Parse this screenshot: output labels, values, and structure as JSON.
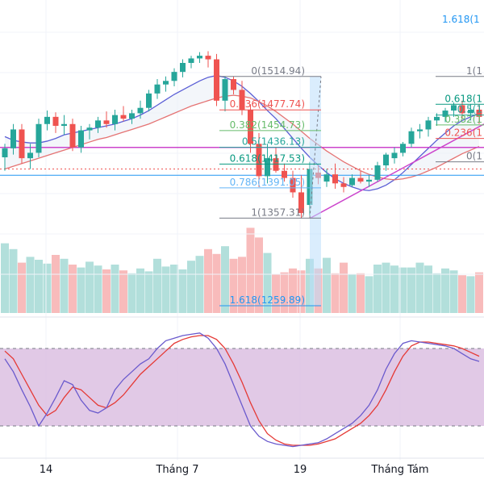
{
  "chart_data": {
    "type": "candlestick",
    "colors": {
      "up": "#26a69a",
      "down": "#ef5350",
      "volume_up": "#b2dfdb",
      "volume_down": "#f8bbbb",
      "ma_fast": "#5b5fd6",
      "ma_slow": "#e57373",
      "support": "#cc44cc",
      "hline": "#2196f3",
      "stoch_k": "#6a5acd",
      "stoch_d": "#e53935",
      "stoch_band": "#d9bce0"
    },
    "x_ticks": [
      "14",
      "Tháng 7",
      "19",
      "Tháng Tám"
    ],
    "candles": [
      {
        "o": 1425,
        "h": 1440,
        "l": 1410,
        "c": 1435
      },
      {
        "o": 1435,
        "h": 1462,
        "l": 1428,
        "c": 1456
      },
      {
        "o": 1456,
        "h": 1462,
        "l": 1418,
        "c": 1424
      },
      {
        "o": 1424,
        "h": 1440,
        "l": 1412,
        "c": 1430
      },
      {
        "o": 1430,
        "h": 1468,
        "l": 1425,
        "c": 1462
      },
      {
        "o": 1462,
        "h": 1477,
        "l": 1455,
        "c": 1470
      },
      {
        "o": 1470,
        "h": 1475,
        "l": 1452,
        "c": 1460
      },
      {
        "o": 1460,
        "h": 1472,
        "l": 1450,
        "c": 1462
      },
      {
        "o": 1462,
        "h": 1468,
        "l": 1432,
        "c": 1436
      },
      {
        "o": 1436,
        "h": 1460,
        "l": 1430,
        "c": 1455
      },
      {
        "o": 1455,
        "h": 1462,
        "l": 1445,
        "c": 1458
      },
      {
        "o": 1458,
        "h": 1470,
        "l": 1452,
        "c": 1466
      },
      {
        "o": 1466,
        "h": 1476,
        "l": 1458,
        "c": 1462
      },
      {
        "o": 1462,
        "h": 1478,
        "l": 1455,
        "c": 1472
      },
      {
        "o": 1472,
        "h": 1482,
        "l": 1465,
        "c": 1468
      },
      {
        "o": 1468,
        "h": 1478,
        "l": 1462,
        "c": 1474
      },
      {
        "o": 1474,
        "h": 1488,
        "l": 1468,
        "c": 1480
      },
      {
        "o": 1480,
        "h": 1500,
        "l": 1476,
        "c": 1496
      },
      {
        "o": 1496,
        "h": 1512,
        "l": 1490,
        "c": 1506
      },
      {
        "o": 1506,
        "h": 1515,
        "l": 1498,
        "c": 1510
      },
      {
        "o": 1510,
        "h": 1524,
        "l": 1504,
        "c": 1520
      },
      {
        "o": 1520,
        "h": 1534,
        "l": 1514,
        "c": 1530
      },
      {
        "o": 1530,
        "h": 1538,
        "l": 1524,
        "c": 1535
      },
      {
        "o": 1535,
        "h": 1542,
        "l": 1530,
        "c": 1538
      },
      {
        "o": 1538,
        "h": 1543,
        "l": 1525,
        "c": 1534
      },
      {
        "o": 1534,
        "h": 1540,
        "l": 1482,
        "c": 1488
      },
      {
        "o": 1488,
        "h": 1515,
        "l": 1476,
        "c": 1512
      },
      {
        "o": 1512,
        "h": 1515,
        "l": 1495,
        "c": 1500
      },
      {
        "o": 1500,
        "h": 1510,
        "l": 1472,
        "c": 1478
      },
      {
        "o": 1478,
        "h": 1484,
        "l": 1430,
        "c": 1440
      },
      {
        "o": 1440,
        "h": 1452,
        "l": 1392,
        "c": 1404
      },
      {
        "o": 1404,
        "h": 1440,
        "l": 1396,
        "c": 1424
      },
      {
        "o": 1424,
        "h": 1436,
        "l": 1408,
        "c": 1410
      },
      {
        "o": 1410,
        "h": 1418,
        "l": 1398,
        "c": 1402
      },
      {
        "o": 1402,
        "h": 1410,
        "l": 1380,
        "c": 1386
      },
      {
        "o": 1386,
        "h": 1405,
        "l": 1357,
        "c": 1363
      },
      {
        "o": 1372,
        "h": 1420,
        "l": 1360,
        "c": 1412
      },
      {
        "o": 1408,
        "h": 1416,
        "l": 1395,
        "c": 1402
      },
      {
        "o": 1398,
        "h": 1412,
        "l": 1392,
        "c": 1406
      },
      {
        "o": 1406,
        "h": 1418,
        "l": 1390,
        "c": 1396
      },
      {
        "o": 1396,
        "h": 1403,
        "l": 1386,
        "c": 1392
      },
      {
        "o": 1394,
        "h": 1406,
        "l": 1392,
        "c": 1402
      },
      {
        "o": 1402,
        "h": 1410,
        "l": 1396,
        "c": 1398
      },
      {
        "o": 1398,
        "h": 1405,
        "l": 1392,
        "c": 1400
      },
      {
        "o": 1400,
        "h": 1420,
        "l": 1398,
        "c": 1416
      },
      {
        "o": 1416,
        "h": 1430,
        "l": 1410,
        "c": 1428
      },
      {
        "o": 1424,
        "h": 1436,
        "l": 1418,
        "c": 1430
      },
      {
        "o": 1430,
        "h": 1442,
        "l": 1426,
        "c": 1440
      },
      {
        "o": 1440,
        "h": 1458,
        "l": 1436,
        "c": 1454
      },
      {
        "o": 1454,
        "h": 1462,
        "l": 1446,
        "c": 1456
      },
      {
        "o": 1456,
        "h": 1470,
        "l": 1448,
        "c": 1466
      },
      {
        "o": 1466,
        "h": 1474,
        "l": 1460,
        "c": 1470
      },
      {
        "o": 1470,
        "h": 1480,
        "l": 1464,
        "c": 1477
      },
      {
        "o": 1477,
        "h": 1486,
        "l": 1470,
        "c": 1483
      },
      {
        "o": 1483,
        "h": 1488,
        "l": 1468,
        "c": 1474
      },
      {
        "o": 1474,
        "h": 1484,
        "l": 1466,
        "c": 1478
      },
      {
        "o": 1478,
        "h": 1484,
        "l": 1462,
        "c": 1470
      }
    ],
    "volumes": [
      72,
      66,
      52,
      58,
      55,
      51,
      60,
      56,
      50,
      47,
      53,
      49,
      45,
      50,
      44,
      41,
      46,
      43,
      56,
      48,
      50,
      45,
      54,
      59,
      66,
      61,
      69,
      56,
      58,
      88,
      78,
      62,
      40,
      42,
      46,
      44,
      56,
      46,
      57,
      41,
      52,
      40,
      41,
      38,
      50,
      52,
      49,
      47,
      47,
      52,
      49,
      41,
      46,
      44,
      39,
      38,
      42
    ],
    "volume_ylim": [
      0,
      100
    ],
    "ylim": [
      1250,
      1600
    ],
    "ma_fast": [
      1448,
      1444,
      1442,
      1441,
      1441,
      1443,
      1446,
      1450,
      1452,
      1454,
      1456,
      1458,
      1460,
      1462,
      1465,
      1468,
      1472,
      1477,
      1483,
      1489,
      1495,
      1500,
      1505,
      1510,
      1514,
      1516,
      1514,
      1510,
      1504,
      1496,
      1487,
      1477,
      1468,
      1457,
      1446,
      1435,
      1425,
      1416,
      1408,
      1401,
      1396,
      1392,
      1389,
      1388,
      1390,
      1394,
      1400,
      1408,
      1417,
      1426,
      1435,
      1444,
      1452,
      1460,
      1466,
      1470,
      1474
    ],
    "ma_slow": [
      1412,
      1415,
      1418,
      1421,
      1424,
      1427,
      1430,
      1433,
      1436,
      1439,
      1442,
      1445,
      1447,
      1450,
      1453,
      1456,
      1459,
      1462,
      1466,
      1470,
      1474,
      1478,
      1482,
      1485,
      1488,
      1491,
      1493,
      1494,
      1493,
      1491,
      1487,
      1482,
      1476,
      1469,
      1462,
      1454,
      1446,
      1439,
      1432,
      1426,
      1420,
      1415,
      1410,
      1406,
      1403,
      1401,
      1400,
      1401,
      1403,
      1406,
      1410,
      1414,
      1419,
      1424,
      1429,
      1433,
      1437
    ],
    "hlines": [
      1436,
      1405
    ],
    "dotted_line": 1412,
    "support_line": [
      [
        1357,
        0
      ],
      [
        1462,
        1
      ]
    ],
    "fib_retracements": [
      {
        "label": "0(1514.94)",
        "value": 1514.94,
        "color": "#787b86"
      },
      {
        "label": "0.236(1477.74)",
        "value": 1477.74,
        "color": "#ef5350"
      },
      {
        "label": "0.382(1454.73)",
        "value": 1454.73,
        "color": "#66bb6a"
      },
      {
        "label": "0.5(1436.13)",
        "value": 1436.13,
        "color": "#26a69a"
      },
      {
        "label": "0.618(1417.53)",
        "value": 1417.53,
        "color": "#089981"
      },
      {
        "label": "0.786(1391.05)",
        "value": 1391.05,
        "color": "#64b5f6"
      },
      {
        "label": "1(1357.31)",
        "value": 1357.31,
        "color": "#787b86"
      },
      {
        "label": "1.618(1259.89)",
        "value": 1259.89,
        "color": "#2196f3"
      }
    ],
    "fib_right": [
      {
        "label": "1.618(1",
        "value": 1580,
        "color": "#2196f3"
      },
      {
        "label": "1(1",
        "value": 1514.94,
        "color": "#787b86"
      },
      {
        "label": "0.618(1",
        "value": 1484,
        "color": "#089981"
      },
      {
        "label": "0.5(1",
        "value": 1472,
        "color": "#26a69a"
      },
      {
        "label": "0.382(1",
        "value": 1461,
        "color": "#66bb6a"
      },
      {
        "label": "0.236(1",
        "value": 1446,
        "color": "#ef5350"
      },
      {
        "label": "0(1",
        "value": 1420,
        "color": "#787b86"
      }
    ],
    "stochastic": {
      "ylim": [
        0,
        100
      ],
      "overbought": 80,
      "oversold": 20,
      "k": [
        72,
        62,
        48,
        35,
        20,
        30,
        42,
        55,
        52,
        40,
        32,
        30,
        34,
        48,
        56,
        62,
        68,
        72,
        80,
        86,
        88,
        90,
        91,
        92,
        88,
        80,
        68,
        52,
        36,
        20,
        12,
        8,
        6,
        5,
        4,
        5,
        6,
        7,
        10,
        14,
        18,
        22,
        28,
        36,
        48,
        64,
        76,
        84,
        86,
        85,
        84,
        83,
        82,
        80,
        76,
        72,
        70
      ],
      "d": [
        78,
        72,
        60,
        48,
        36,
        28,
        32,
        42,
        50,
        48,
        42,
        36,
        34,
        38,
        44,
        52,
        60,
        66,
        72,
        78,
        84,
        87,
        89,
        90,
        90,
        87,
        80,
        68,
        54,
        38,
        24,
        14,
        9,
        6,
        5,
        5,
        5,
        6,
        8,
        10,
        14,
        18,
        22,
        28,
        36,
        48,
        62,
        74,
        82,
        85,
        85,
        84,
        83,
        82,
        80,
        77,
        74
      ]
    }
  }
}
